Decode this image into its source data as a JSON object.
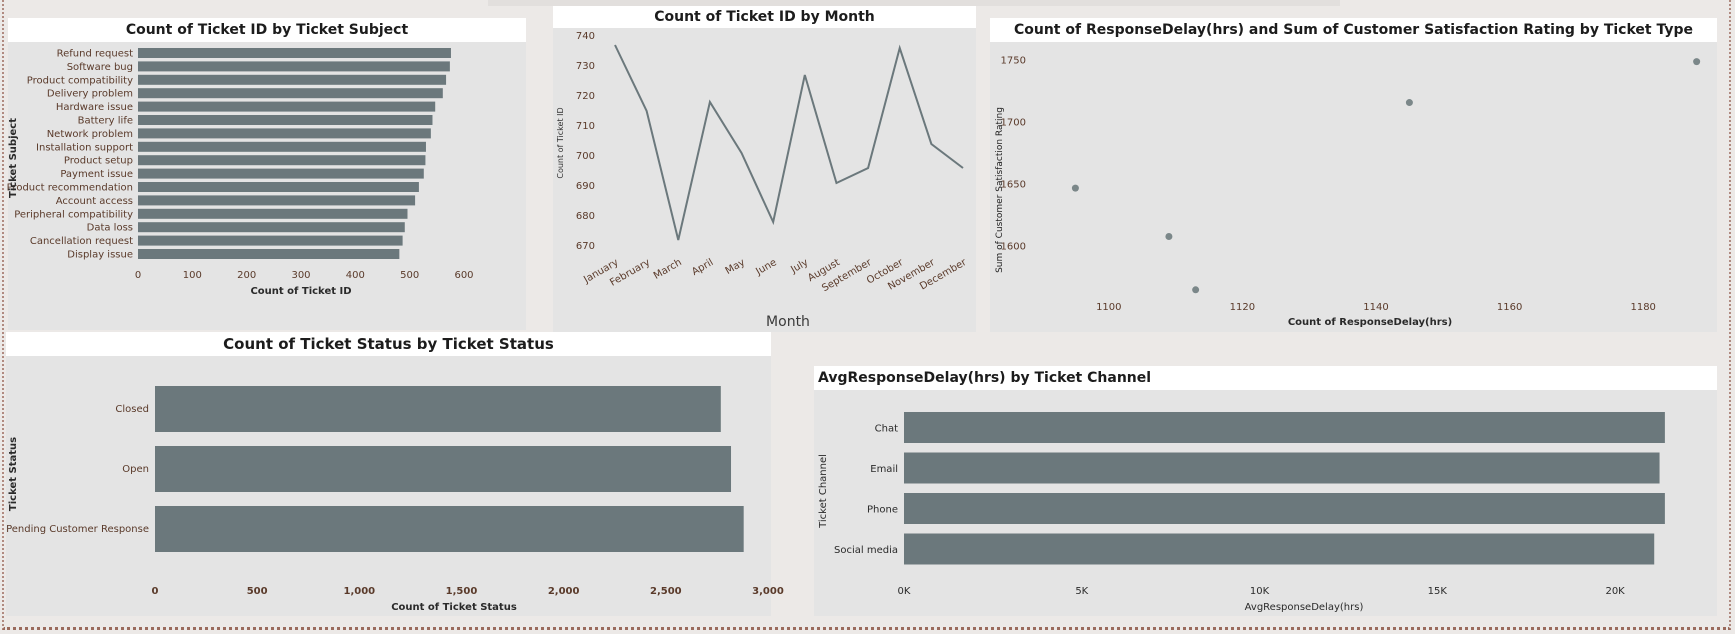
{
  "colors": {
    "bar": "#6b787c",
    "line": "#6b787c",
    "dot": "#7b8789",
    "panel_bg": "#e4e4e4",
    "title_bg": "#ffffff"
  },
  "chart_data": [
    {
      "type": "bar",
      "orientation": "horizontal",
      "title": "Count of Ticket ID by Ticket Subject",
      "xlabel": "Count of Ticket ID",
      "ylabel": "Ticket Subject",
      "categories": [
        "Refund request",
        "Software bug",
        "Product compatibility",
        "Delivery problem",
        "Hardware issue",
        "Battery life",
        "Network problem",
        "Installation support",
        "Product setup",
        "Payment issue",
        "Product recommendation",
        "Account access",
        "Peripheral compatibility",
        "Data loss",
        "Cancellation request",
        "Display issue"
      ],
      "values": [
        576,
        574,
        567,
        561,
        547,
        542,
        539,
        530,
        529,
        526,
        517,
        510,
        496,
        491,
        487,
        481
      ],
      "xlim": [
        0,
        600
      ],
      "xticks": [
        "0",
        "100",
        "200",
        "300",
        "400",
        "500",
        "600"
      ]
    },
    {
      "type": "line",
      "title": "Count of Ticket ID by Month",
      "xlabel": "Month",
      "ylabel": "Count of Ticket ID",
      "categories": [
        "January",
        "February",
        "March",
        "April",
        "May",
        "June",
        "July",
        "August",
        "September",
        "October",
        "November",
        "December"
      ],
      "values": [
        737,
        715,
        672,
        718,
        701,
        678,
        727,
        691,
        696,
        736,
        704,
        696
      ],
      "ylim": [
        670,
        740
      ],
      "yticks": [
        "740",
        "730",
        "720",
        "710",
        "700",
        "690",
        "680",
        "670"
      ]
    },
    {
      "type": "scatter",
      "title": "Count of ResponseDelay(hrs) and Sum of Customer Satisfaction Rating by Ticket Type",
      "xlabel": "Count of ResponseDelay(hrs)",
      "ylabel": "Sum of Customer Satisfaction Rating",
      "points": [
        {
          "x": 1095,
          "y": 1647
        },
        {
          "x": 1109,
          "y": 1608
        },
        {
          "x": 1113,
          "y": 1565
        },
        {
          "x": 1145,
          "y": 1716
        },
        {
          "x": 1188,
          "y": 1749
        }
      ],
      "xlim": [
        1090,
        1190
      ],
      "ylim": [
        1560,
        1760
      ],
      "xticks": [
        "1100",
        "1120",
        "1140",
        "1160",
        "1180"
      ],
      "yticks": [
        "1750",
        "1700",
        "1650",
        "1600"
      ]
    },
    {
      "type": "bar",
      "orientation": "horizontal",
      "title": "Count of Ticket Status by Ticket Status",
      "xlabel": "Count of Ticket Status",
      "ylabel": "Ticket Status",
      "categories": [
        "Closed",
        "Open",
        "Pending Customer Response"
      ],
      "values": [
        2769,
        2819,
        2881
      ],
      "xlim": [
        0,
        3000
      ],
      "xticks": [
        "0",
        "500",
        "1,000",
        "1,500",
        "2,000",
        "2,500",
        "3,000"
      ]
    },
    {
      "type": "bar",
      "orientation": "horizontal",
      "title": "AvgResponseDelay(hrs) by Ticket Channel",
      "xlabel": "AvgResponseDelay(hrs)",
      "ylabel": "Ticket Channel",
      "categories": [
        "Chat",
        "Email",
        "Phone",
        "Social media"
      ],
      "values": [
        21400,
        21250,
        21400,
        21100
      ],
      "xlim": [
        0,
        22500
      ],
      "xticks": [
        "0K",
        "5K",
        "10K",
        "15K",
        "20K"
      ]
    }
  ]
}
